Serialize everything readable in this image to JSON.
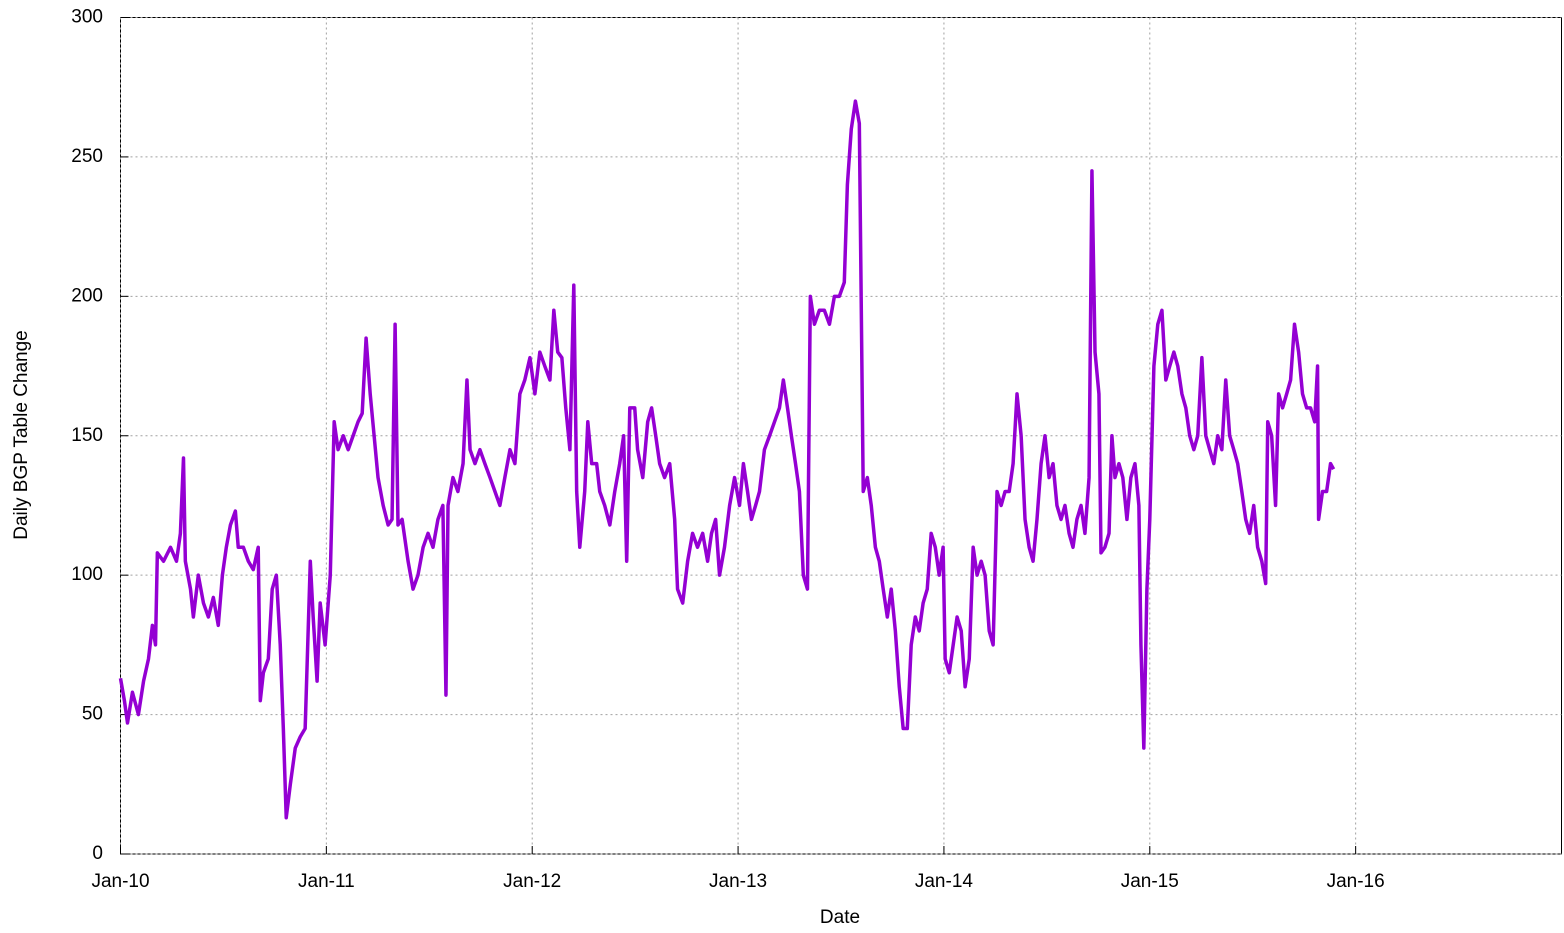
{
  "chart_data": {
    "type": "line",
    "xlabel": "Date",
    "ylabel": "Daily BGP Table Change",
    "xlim": [
      2010,
      2017
    ],
    "ylim": [
      0,
      300
    ],
    "xticks": [
      {
        "value": 2010,
        "label": "Jan-10"
      },
      {
        "value": 2011,
        "label": "Jan-11"
      },
      {
        "value": 2012,
        "label": "Jan-12"
      },
      {
        "value": 2013,
        "label": "Jan-13"
      },
      {
        "value": 2014,
        "label": "Jan-14"
      },
      {
        "value": 2015,
        "label": "Jan-15"
      },
      {
        "value": 2016,
        "label": "Jan-16"
      }
    ],
    "yticks": [
      0,
      50,
      100,
      150,
      200,
      250,
      300
    ],
    "grid": true,
    "x": [
      2010.0,
      2010.019,
      2010.034,
      2010.058,
      2010.087,
      2010.112,
      2010.136,
      2010.155,
      2010.17,
      2010.179,
      2010.209,
      2010.243,
      2010.272,
      2010.291,
      2010.306,
      2010.315,
      2010.34,
      2010.354,
      2010.378,
      2010.403,
      2010.427,
      2010.451,
      2010.475,
      2010.495,
      2010.514,
      2010.534,
      2010.558,
      2010.572,
      2010.597,
      2010.621,
      2010.645,
      2010.669,
      2010.679,
      2010.694,
      2010.718,
      2010.737,
      2010.757,
      2010.776,
      2010.791,
      2010.805,
      2010.825,
      2010.849,
      2010.873,
      2010.897,
      2010.922,
      2010.936,
      2010.955,
      2010.97,
      2010.994,
      2011.019,
      2011.038,
      2011.057,
      2011.082,
      2011.106,
      2011.13,
      2011.154,
      2011.174,
      2011.193,
      2011.213,
      2011.232,
      2011.251,
      2011.276,
      2011.3,
      2011.319,
      2011.334,
      2011.348,
      2011.368,
      2011.397,
      2011.421,
      2011.445,
      2011.47,
      2011.494,
      2011.518,
      2011.542,
      2011.566,
      2011.581,
      2011.591,
      2011.615,
      2011.639,
      2011.664,
      2011.683,
      2011.698,
      2011.722,
      2011.746,
      2011.77,
      2011.795,
      2011.819,
      2011.843,
      2011.867,
      2011.892,
      2011.916,
      2011.94,
      2011.964,
      2011.989,
      2012.013,
      2012.037,
      2012.061,
      2012.086,
      2012.105,
      2012.124,
      2012.144,
      2012.163,
      2012.183,
      2012.202,
      2012.216,
      2012.231,
      2012.255,
      2012.27,
      2012.289,
      2012.313,
      2012.328,
      2012.352,
      2012.377,
      2012.401,
      2012.425,
      2012.444,
      2012.459,
      2012.474,
      2012.498,
      2012.512,
      2012.537,
      2012.561,
      2012.58,
      2012.6,
      2012.619,
      2012.643,
      2012.668,
      2012.692,
      2012.706,
      2012.731,
      2012.755,
      2012.779,
      2012.803,
      2012.828,
      2012.852,
      2012.871,
      2012.891,
      2012.91,
      2012.934,
      2012.959,
      2012.983,
      2013.007,
      2013.026,
      2013.046,
      2013.065,
      2013.085,
      2013.104,
      2013.128,
      2013.153,
      2013.177,
      2013.201,
      2013.22,
      2013.24,
      2013.259,
      2013.279,
      2013.298,
      2013.317,
      2013.337,
      2013.351,
      2013.371,
      2013.395,
      2013.419,
      2013.444,
      2013.468,
      2013.492,
      2013.516,
      2013.531,
      2013.55,
      2013.57,
      2013.589,
      2013.608,
      2013.628,
      2013.647,
      2013.667,
      2013.686,
      2013.705,
      2013.725,
      2013.744,
      2013.764,
      2013.783,
      2013.802,
      2013.822,
      2013.841,
      2013.861,
      2013.88,
      2013.899,
      2013.919,
      2013.938,
      2013.958,
      2013.977,
      2013.996,
      2014.006,
      2014.026,
      2014.045,
      2014.064,
      2014.084,
      2014.103,
      2014.123,
      2014.142,
      2014.161,
      2014.181,
      2014.2,
      2014.22,
      2014.239,
      2014.258,
      2014.278,
      2014.297,
      2014.317,
      2014.336,
      2014.355,
      2014.375,
      2014.394,
      2014.414,
      2014.433,
      2014.452,
      2014.472,
      2014.491,
      2014.511,
      2014.53,
      2014.549,
      2014.569,
      2014.588,
      2014.608,
      2014.627,
      2014.646,
      2014.666,
      2014.685,
      2014.705,
      2014.719,
      2014.734,
      2014.753,
      2014.763,
      2014.782,
      2014.802,
      2014.816,
      2014.831,
      2014.85,
      2014.869,
      2014.889,
      2014.908,
      2014.928,
      2014.947,
      2014.957,
      2014.971,
      2014.986,
      2015.0,
      2015.02,
      2015.039,
      2015.059,
      2015.078,
      2015.097,
      2015.117,
      2015.136,
      2015.156,
      2015.175,
      2015.194,
      2015.214,
      2015.233,
      2015.253,
      2015.272,
      2015.291,
      2015.311,
      2015.33,
      2015.35,
      2015.369,
      2015.388,
      2015.408,
      2015.427,
      2015.447,
      2015.466,
      2015.485,
      2015.505,
      2015.524,
      2015.544,
      2015.563,
      2015.573,
      2015.592,
      2015.611,
      2015.626,
      2015.645,
      2015.665,
      2015.684,
      2015.703,
      2015.723,
      2015.742,
      2015.762,
      2015.781,
      2015.801,
      2015.815,
      2015.82,
      2015.839,
      2015.859,
      2015.878,
      2015.893
    ],
    "series": [
      {
        "color": "#9400d3",
        "values": [
          63,
          55,
          47,
          58,
          50,
          62,
          70,
          82,
          75,
          108,
          105,
          110,
          105,
          115,
          142,
          105,
          95,
          85,
          100,
          90,
          85,
          92,
          82,
          100,
          110,
          118,
          123,
          110,
          110,
          105,
          102,
          110,
          55,
          65,
          70,
          95,
          100,
          75,
          45,
          13,
          25,
          38,
          42,
          45,
          105,
          85,
          62,
          90,
          75,
          100,
          155,
          145,
          150,
          145,
          150,
          155,
          158,
          185,
          165,
          150,
          135,
          125,
          118,
          120,
          190,
          118,
          120,
          105,
          95,
          100,
          110,
          115,
          110,
          120,
          125,
          57,
          125,
          135,
          130,
          140,
          170,
          145,
          140,
          145,
          140,
          135,
          130,
          125,
          135,
          145,
          140,
          165,
          170,
          178,
          165,
          180,
          175,
          170,
          195,
          180,
          178,
          160,
          145,
          204,
          130,
          110,
          130,
          155,
          140,
          140,
          130,
          125,
          118,
          130,
          140,
          150,
          105,
          160,
          160,
          145,
          135,
          155,
          160,
          150,
          140,
          135,
          140,
          120,
          95,
          90,
          105,
          115,
          110,
          115,
          105,
          115,
          120,
          100,
          110,
          125,
          135,
          125,
          140,
          130,
          120,
          125,
          130,
          145,
          150,
          155,
          160,
          170,
          160,
          150,
          140,
          130,
          100,
          95,
          200,
          190,
          195,
          195,
          190,
          200,
          200,
          205,
          240,
          260,
          270,
          262,
          130,
          135,
          125,
          110,
          105,
          95,
          85,
          95,
          80,
          60,
          45,
          45,
          75,
          85,
          80,
          90,
          95,
          115,
          110,
          100,
          110,
          70,
          65,
          75,
          85,
          80,
          60,
          70,
          110,
          100,
          105,
          100,
          80,
          75,
          130,
          125,
          130,
          130,
          140,
          165,
          150,
          120,
          110,
          105,
          120,
          140,
          150,
          135,
          140,
          125,
          120,
          125,
          115,
          110,
          120,
          125,
          115,
          135,
          245,
          180,
          165,
          108,
          110,
          115,
          150,
          135,
          140,
          135,
          120,
          135,
          140,
          125,
          75,
          38,
          95,
          120,
          175,
          190,
          195,
          170,
          175,
          180,
          175,
          165,
          160,
          150,
          145,
          150,
          178,
          150,
          145,
          140,
          150,
          145,
          170,
          150,
          145,
          140,
          130,
          120,
          115,
          125,
          110,
          105,
          97,
          155,
          150,
          125,
          165,
          160,
          165,
          170,
          190,
          180,
          165,
          160,
          160,
          155,
          175,
          120,
          130,
          130,
          140,
          138
        ]
      }
    ]
  }
}
